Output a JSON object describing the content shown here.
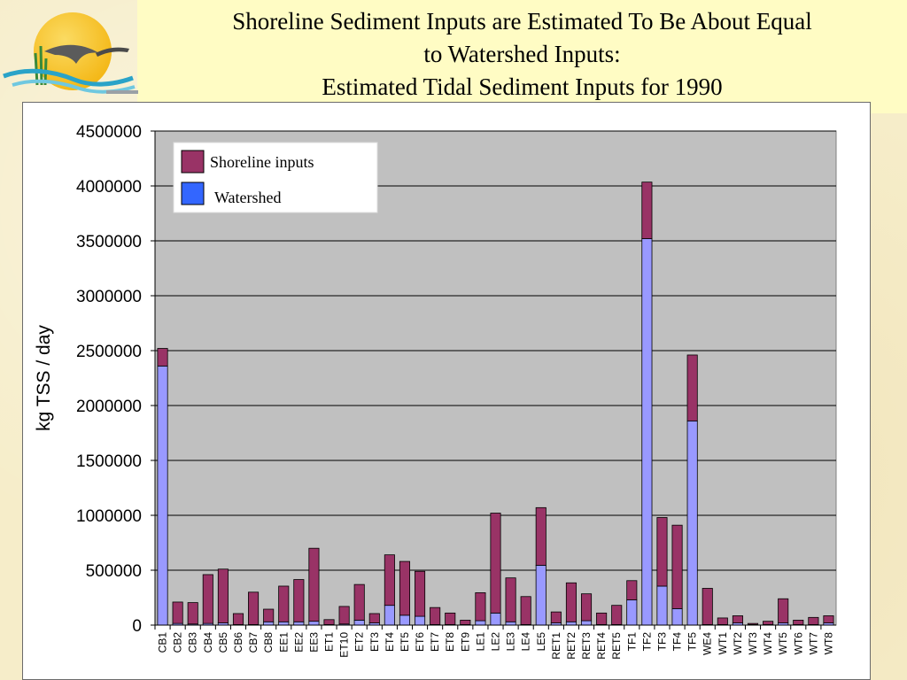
{
  "title_lines": [
    "Shoreline Sediment Inputs are Estimated To Be About Equal",
    "to Watershed Inputs:",
    "Estimated Tidal Sediment Inputs for 1990"
  ],
  "colors": {
    "shoreline": "#993366",
    "watershed_legend": "#3366ff",
    "watershed_bar": "#9999ff",
    "plot_bg": "#c0c0c0"
  },
  "chart_data": {
    "type": "bar",
    "stacked": true,
    "title": "",
    "xlabel": "",
    "ylabel": "kg TSS / day",
    "ylim": [
      0,
      4500000
    ],
    "yticks": [
      0,
      500000,
      1000000,
      1500000,
      2000000,
      2500000,
      3000000,
      3500000,
      4000000,
      4500000
    ],
    "grid": true,
    "legend_position": "top-left",
    "categories": [
      "CB1",
      "CB2",
      "CB3",
      "CB4",
      "CB5",
      "CB6",
      "CB7",
      "CB8",
      "EE1",
      "EE2",
      "EE3",
      "ET1",
      "ET10",
      "ET2",
      "ET3",
      "ET4",
      "ET5",
      "ET6",
      "ET7",
      "ET8",
      "ET9",
      "LE1",
      "LE2",
      "LE3",
      "LE4",
      "LE5",
      "RET1",
      "RET2",
      "RET3",
      "RET4",
      "RET5",
      "TF1",
      "TF2",
      "TF3",
      "TF4",
      "TF5",
      "WE4",
      "WT1",
      "WT2",
      "WT3",
      "WT4",
      "WT5",
      "WT6",
      "WT7",
      "WT8"
    ],
    "series": [
      {
        "name": "Watershed",
        "values": [
          2360000,
          15000,
          10000,
          15000,
          20000,
          5000,
          5000,
          30000,
          30000,
          30000,
          35000,
          5000,
          10000,
          45000,
          20000,
          180000,
          90000,
          80000,
          5000,
          5000,
          5000,
          40000,
          110000,
          30000,
          5000,
          545000,
          20000,
          30000,
          40000,
          5000,
          5000,
          230000,
          3520000,
          355000,
          150000,
          1860000,
          5000,
          5000,
          20000,
          5000,
          5000,
          20000,
          5000,
          5000,
          20000
        ]
      },
      {
        "name": "Shoreline inputs",
        "values": [
          160000,
          195000,
          195000,
          445000,
          490000,
          100000,
          295000,
          115000,
          325000,
          385000,
          665000,
          45000,
          160000,
          325000,
          85000,
          460000,
          490000,
          410000,
          155000,
          105000,
          40000,
          255000,
          910000,
          400000,
          255000,
          525000,
          100000,
          355000,
          245000,
          105000,
          175000,
          175000,
          515000,
          625000,
          760000,
          600000,
          330000,
          60000,
          65000,
          10000,
          30000,
          220000,
          40000,
          65000,
          65000
        ]
      }
    ]
  }
}
